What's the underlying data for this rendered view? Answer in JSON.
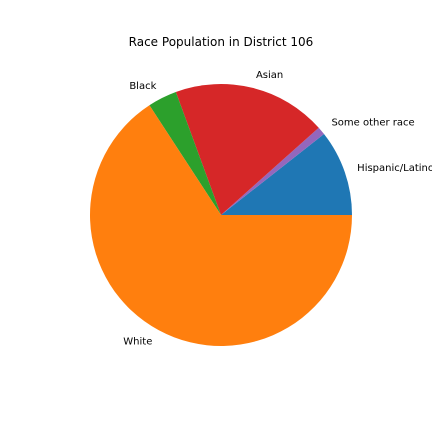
{
  "chart_data": {
    "type": "pie",
    "title": "Race Population in District 106",
    "categories": [
      "Hispanic/Latino",
      "Some other race",
      "Asian",
      "Black",
      "White"
    ],
    "values": [
      10.6,
      1.0,
      19.0,
      3.6,
      65.8
    ],
    "colors": [
      "#1f77b4",
      "#9467bd",
      "#d62728",
      "#2ca02c",
      "#ff7f0e"
    ],
    "start_angle_deg": 0,
    "direction": "counterclockwise",
    "legend": "none"
  }
}
